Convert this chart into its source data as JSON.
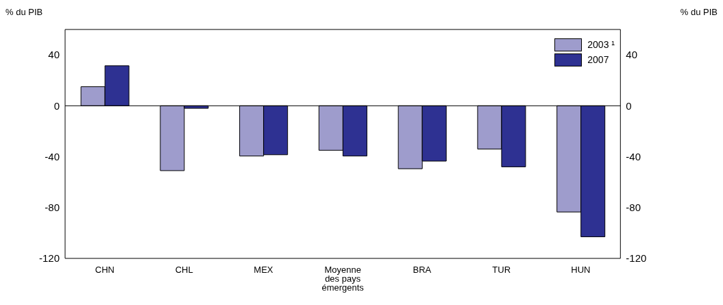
{
  "chart_data": {
    "type": "bar",
    "ylabel": "% du PIB",
    "y2label": "% du PIB",
    "categories": [
      "CHN",
      "CHL",
      "MEX",
      "Moyenne des pays émergents",
      "BRA",
      "TUR",
      "HUN"
    ],
    "series": [
      {
        "name": "2003 ¹",
        "color": "#9e9ccc",
        "values": [
          15,
          -51,
          -39.5,
          -35,
          -49.5,
          -34,
          -83.5
        ]
      },
      {
        "name": "2007",
        "color": "#2e3192",
        "values": [
          31.5,
          -2,
          -38.5,
          -39.5,
          -43.5,
          -48,
          -103
        ]
      }
    ],
    "ylim": [
      -120,
      60
    ],
    "yticks": [
      -120,
      -80,
      -40,
      0,
      40
    ],
    "y2lim": [
      -120,
      60
    ],
    "y2ticks": [
      -120,
      -80,
      -40,
      0,
      40
    ],
    "ref_lines": [
      {
        "axis": "y",
        "value": 0
      }
    ],
    "legend": "top right",
    "grid": false
  }
}
